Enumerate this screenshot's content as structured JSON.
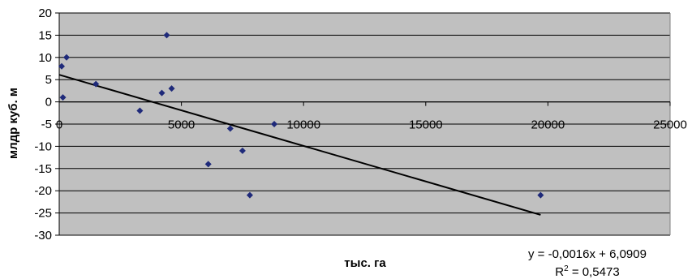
{
  "chart_data": {
    "type": "scatter",
    "title": "",
    "xlabel": "тыс. га",
    "ylabel": "млдр куб. м",
    "xlim": [
      0,
      25000
    ],
    "ylim": [
      -30,
      20
    ],
    "x_ticks": [
      0,
      5000,
      10000,
      15000,
      20000,
      25000
    ],
    "y_ticks": [
      20,
      15,
      10,
      5,
      0,
      -5,
      -10,
      -15,
      -20,
      -25,
      -30
    ],
    "grid": true,
    "plot_background": "#c0c0c0",
    "point_color": "#1f2a7a",
    "series": [
      {
        "x": [
          100,
          150,
          300,
          1500,
          3300,
          4200,
          4400,
          4600,
          6100,
          7000,
          7500,
          7800,
          8800,
          19700
        ],
        "y": [
          8,
          1,
          10,
          4,
          -2,
          2,
          15,
          3,
          -14,
          -6,
          -11,
          -21,
          -5,
          -21
        ]
      }
    ],
    "trendline": {
      "slope": -0.0016,
      "intercept": 6.0909,
      "x_range": [
        0,
        19700
      ],
      "equation_text": "y = -0,0016x + 6,0909",
      "r2_label": "R",
      "r2_sup": "2",
      "r2_value": " = 0,5473"
    }
  }
}
